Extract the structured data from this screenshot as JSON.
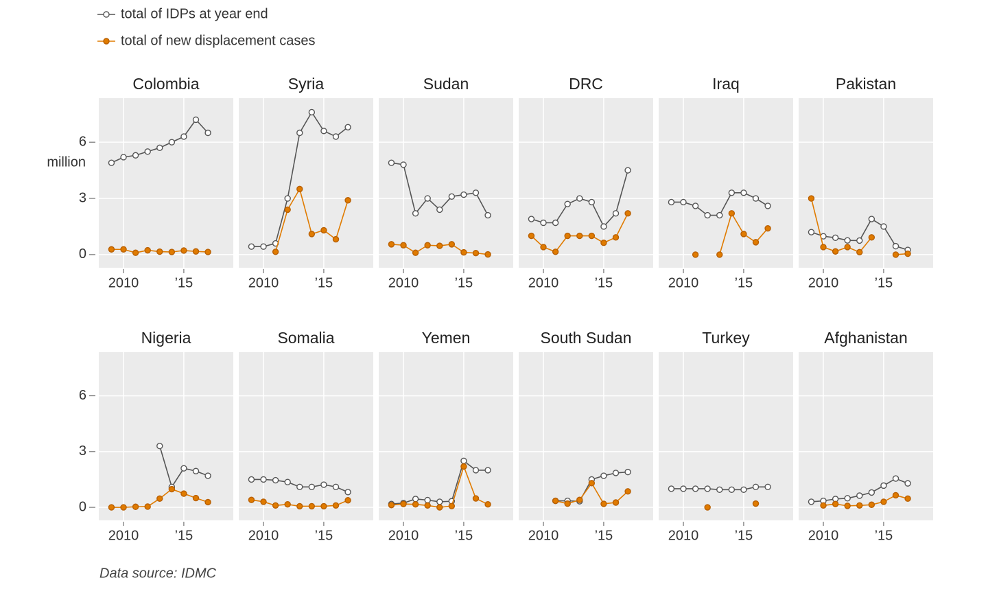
{
  "chart_data": {
    "type": "line",
    "series": [
      {
        "name": "total of IDPs at year end",
        "color": "#555555"
      },
      {
        "name": "total of new displacement cases",
        "color": "#e07b00"
      }
    ],
    "y_label": "million",
    "x": [
      2009,
      2010,
      2011,
      2012,
      2013,
      2014,
      2015,
      2016,
      2017
    ],
    "xlim": [
      2007.95,
      2019.1
    ],
    "xticks": [
      2010,
      {
        "value": 2015,
        "label": "’15"
      }
    ],
    "ylim": [
      -0.7,
      8.35
    ],
    "yticks": [
      0,
      3,
      6
    ],
    "grid": true,
    "panels": [
      {
        "title": "Colombia",
        "series": [
          {
            "values": [
              4.9,
              5.2,
              5.3,
              5.5,
              5.7,
              6.0,
              6.3,
              7.2,
              6.5
            ]
          },
          {
            "values": [
              0.28,
              0.28,
              0.1,
              0.23,
              0.16,
              0.14,
              0.22,
              0.17,
              0.14
            ]
          }
        ]
      },
      {
        "title": "Syria",
        "series": [
          {
            "values": [
              0.43,
              0.43,
              0.6,
              3.0,
              6.5,
              7.6,
              6.6,
              6.3,
              6.8
            ]
          },
          {
            "values": [
              null,
              null,
              0.15,
              2.4,
              3.5,
              1.1,
              1.3,
              0.82,
              2.9
            ]
          }
        ]
      },
      {
        "title": "Sudan",
        "series": [
          {
            "values": [
              4.9,
              4.8,
              2.2,
              3.0,
              2.4,
              3.1,
              3.2,
              3.3,
              2.1
            ]
          },
          {
            "values": [
              0.55,
              0.5,
              0.1,
              0.5,
              0.47,
              0.55,
              0.12,
              0.08,
              0.01
            ]
          }
        ]
      },
      {
        "title": "DRC",
        "series": [
          {
            "values": [
              1.9,
              1.7,
              1.7,
              2.7,
              3.0,
              2.8,
              1.5,
              2.2,
              4.5
            ]
          },
          {
            "values": [
              1.0,
              0.4,
              0.15,
              1.0,
              1.0,
              1.0,
              0.63,
              0.92,
              2.2
            ]
          }
        ]
      },
      {
        "title": "Iraq",
        "series": [
          {
            "values": [
              2.8,
              2.8,
              2.6,
              2.1,
              2.1,
              3.3,
              3.3,
              3.0,
              2.6
            ]
          },
          {
            "values": [
              null,
              null,
              0.0,
              null,
              0.0,
              2.2,
              1.1,
              0.66,
              1.4
            ]
          }
        ]
      },
      {
        "title": "Pakistan",
        "series": [
          {
            "values": [
              1.2,
              0.98,
              0.9,
              0.76,
              0.75,
              1.9,
              1.5,
              0.45,
              0.25
            ]
          },
          {
            "values": [
              3.0,
              0.4,
              0.17,
              0.4,
              0.13,
              0.92,
              null,
              0.0,
              0.05
            ]
          }
        ]
      },
      {
        "title": "Nigeria",
        "series": [
          {
            "values": [
              null,
              null,
              null,
              null,
              3.3,
              1.1,
              2.1,
              1.95,
              1.7
            ]
          },
          {
            "values": [
              0.0,
              0.0,
              0.03,
              0.04,
              0.47,
              0.98,
              0.74,
              0.5,
              0.28
            ]
          }
        ]
      },
      {
        "title": "Somalia",
        "series": [
          {
            "values": [
              1.5,
              1.5,
              1.46,
              1.36,
              1.1,
              1.1,
              1.22,
              1.1,
              0.82
            ]
          },
          {
            "values": [
              0.4,
              0.3,
              0.1,
              0.16,
              0.06,
              0.06,
              0.06,
              0.1,
              0.38
            ]
          }
        ]
      },
      {
        "title": "Yemen",
        "series": [
          {
            "values": [
              0.18,
              0.23,
              0.45,
              0.39,
              0.3,
              0.33,
              2.5,
              2.0,
              2.0
            ]
          },
          {
            "values": [
              0.12,
              0.18,
              0.16,
              0.1,
              0.0,
              0.07,
              2.2,
              0.48,
              0.16
            ]
          }
        ]
      },
      {
        "title": "South Sudan",
        "series": [
          {
            "values": [
              null,
              null,
              0.35,
              0.35,
              0.33,
              1.5,
              1.7,
              1.85,
              1.9
            ]
          },
          {
            "values": [
              null,
              null,
              0.35,
              0.2,
              0.4,
              1.3,
              0.19,
              0.26,
              0.86
            ]
          }
        ]
      },
      {
        "title": "Turkey",
        "series": [
          {
            "values": [
              1.0,
              1.0,
              1.0,
              1.0,
              0.95,
              0.95,
              0.95,
              1.1,
              1.1
            ]
          },
          {
            "values": [
              null,
              null,
              null,
              0.0,
              null,
              null,
              null,
              0.2,
              null
            ]
          }
        ]
      },
      {
        "title": "Afghanistan",
        "series": [
          {
            "values": [
              0.3,
              0.35,
              0.45,
              0.49,
              0.63,
              0.8,
              1.17,
              1.55,
              1.29
            ]
          },
          {
            "values": [
              null,
              0.1,
              0.18,
              0.08,
              0.1,
              0.14,
              0.3,
              0.65,
              0.47
            ]
          }
        ]
      }
    ],
    "source": "Data source: IDMC"
  }
}
